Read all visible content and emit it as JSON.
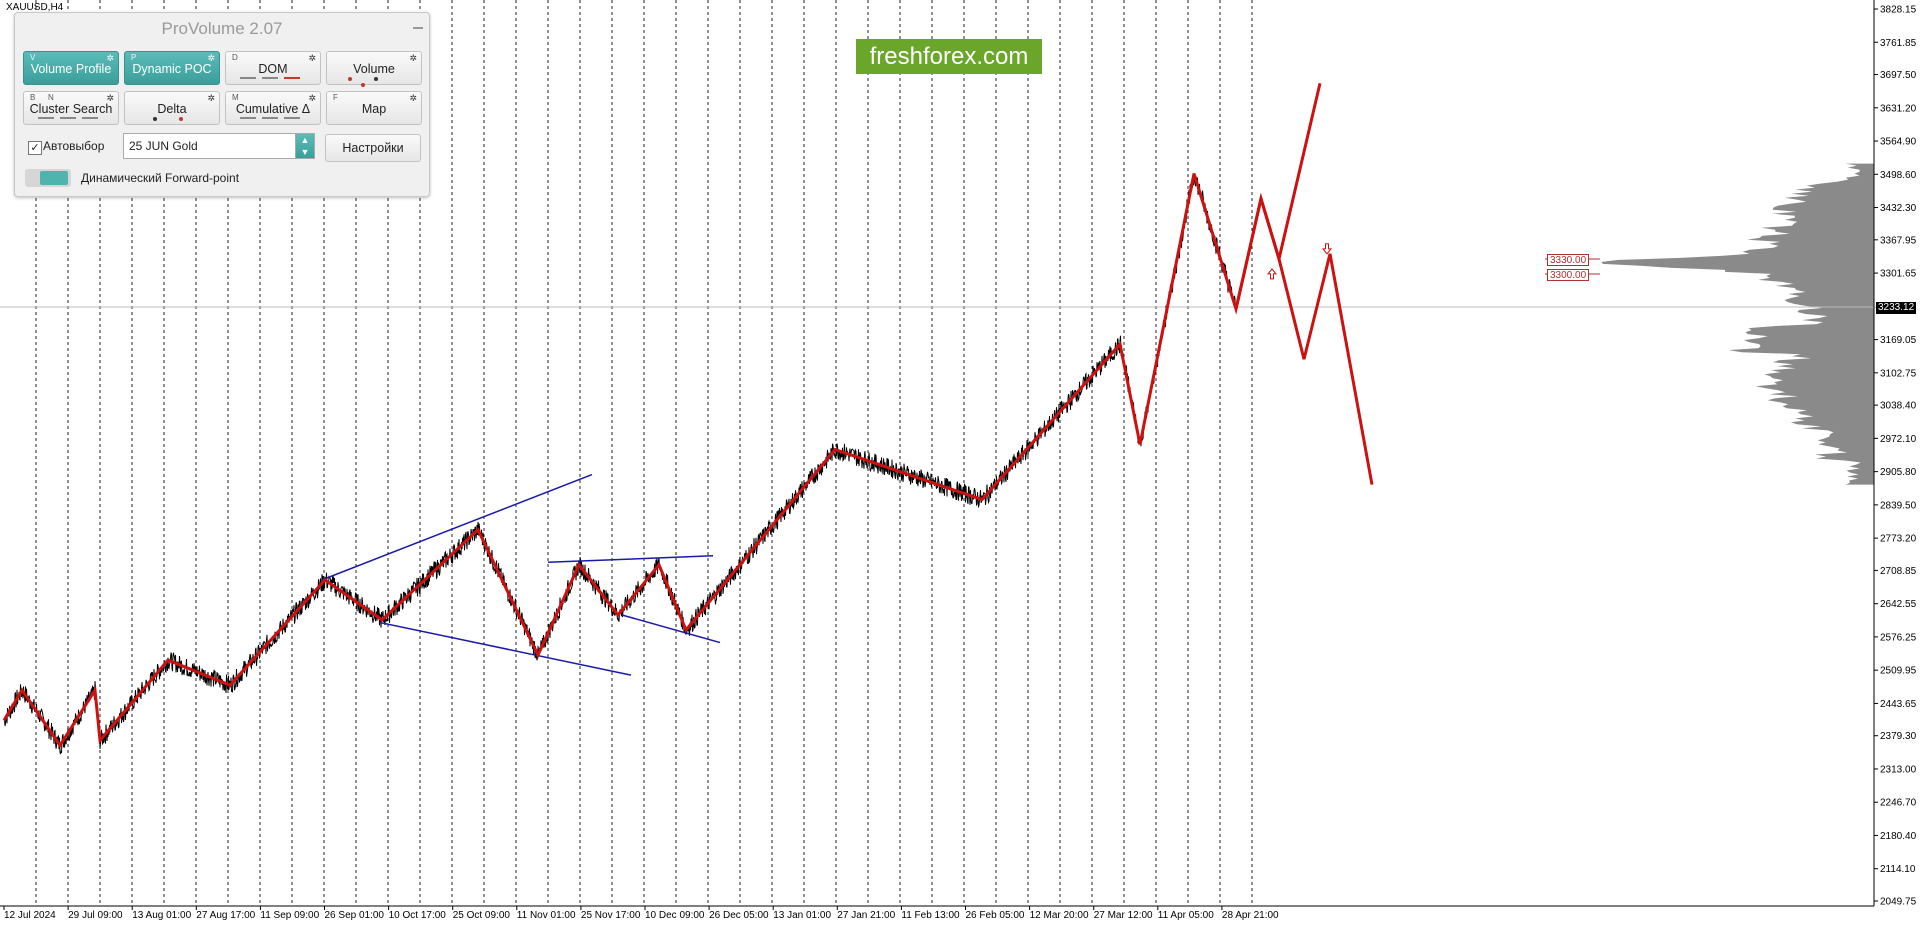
{
  "symbol": "XAUUSD,H4",
  "brand": "freshforex.com",
  "panel": {
    "title": "ProVolume 2.07",
    "buttons": [
      {
        "label": "Volume Profile",
        "key": "V",
        "active": true
      },
      {
        "label": "Dynamic POC",
        "key": "P",
        "active": true
      },
      {
        "label": "DOM",
        "key": "D",
        "active": false
      },
      {
        "label": "Volume",
        "key": "",
        "active": false
      },
      {
        "label": "Cluster Search",
        "key": "B",
        "key2": "N",
        "active": false
      },
      {
        "label": "Delta",
        "key": "",
        "active": false
      },
      {
        "label": "Cumulative Δ",
        "key": "M",
        "active": false
      },
      {
        "label": "Map",
        "key": "F",
        "active": false
      }
    ],
    "autoselect_label": "Автовыбор",
    "autoselect_checked": true,
    "instrument_value": "25 JUN Gold",
    "settings_label": "Настройки",
    "toggle_label": "Динамический Forward-point",
    "toggle_on": true
  },
  "price_axis": {
    "ticks": [
      "3828.15",
      "3761.85",
      "3697.50",
      "3631.20",
      "3564.90",
      "3498.60",
      "3432.30",
      "3367.95",
      "3301.65",
      "3169.05",
      "3102.75",
      "3038.40",
      "2972.10",
      "2905.80",
      "2839.50",
      "2773.20",
      "2708.85",
      "2642.55",
      "2576.25",
      "2509.95",
      "2443.65",
      "2379.30",
      "2313.00",
      "2246.70",
      "2180.40",
      "2114.10",
      "2049.75"
    ],
    "current_price": "3233.12"
  },
  "levels": [
    "3330.00",
    "3300.00"
  ],
  "time_axis": [
    "12 Jul 2024",
    "29 Jul 09:00",
    "13 Aug 01:00",
    "27 Aug 17:00",
    "11 Sep 09:00",
    "26 Sep 01:00",
    "10 Oct 17:00",
    "25 Oct 09:00",
    "11 Nov 01:00",
    "25 Nov 17:00",
    "10 Dec 09:00",
    "26 Dec 05:00",
    "13 Jan 01:00",
    "27 Jan 21:00",
    "11 Feb 13:00",
    "26 Feb 05:00",
    "12 Mar 20:00",
    "27 Mar 12:00",
    "11 Apr 05:00",
    "28 Apr 21:00"
  ],
  "chart_data": {
    "type": "line",
    "title": "",
    "xlabel": "",
    "ylabel": "",
    "ylim": [
      2049.75,
      3828.15
    ],
    "zigzag_waves": [
      2410,
      2470,
      2360,
      2470,
      2370,
      2530,
      2480,
      2690,
      2610,
      2790,
      2540,
      2720,
      2620,
      2720,
      2590,
      2950,
      2850,
      3160,
      2960,
      3500,
      3230,
      3450,
      3330,
      3680
    ],
    "forecast_path": [
      3230,
      3450,
      3330,
      3130,
      3340,
      2880
    ],
    "projection_arrows": {
      "up_at": 3310,
      "down_at": 3340
    },
    "colors": {
      "price": "#000000",
      "zigzag": "#cc1111",
      "channel": "#1a1aa8",
      "profile": "#8a8a8a"
    }
  }
}
